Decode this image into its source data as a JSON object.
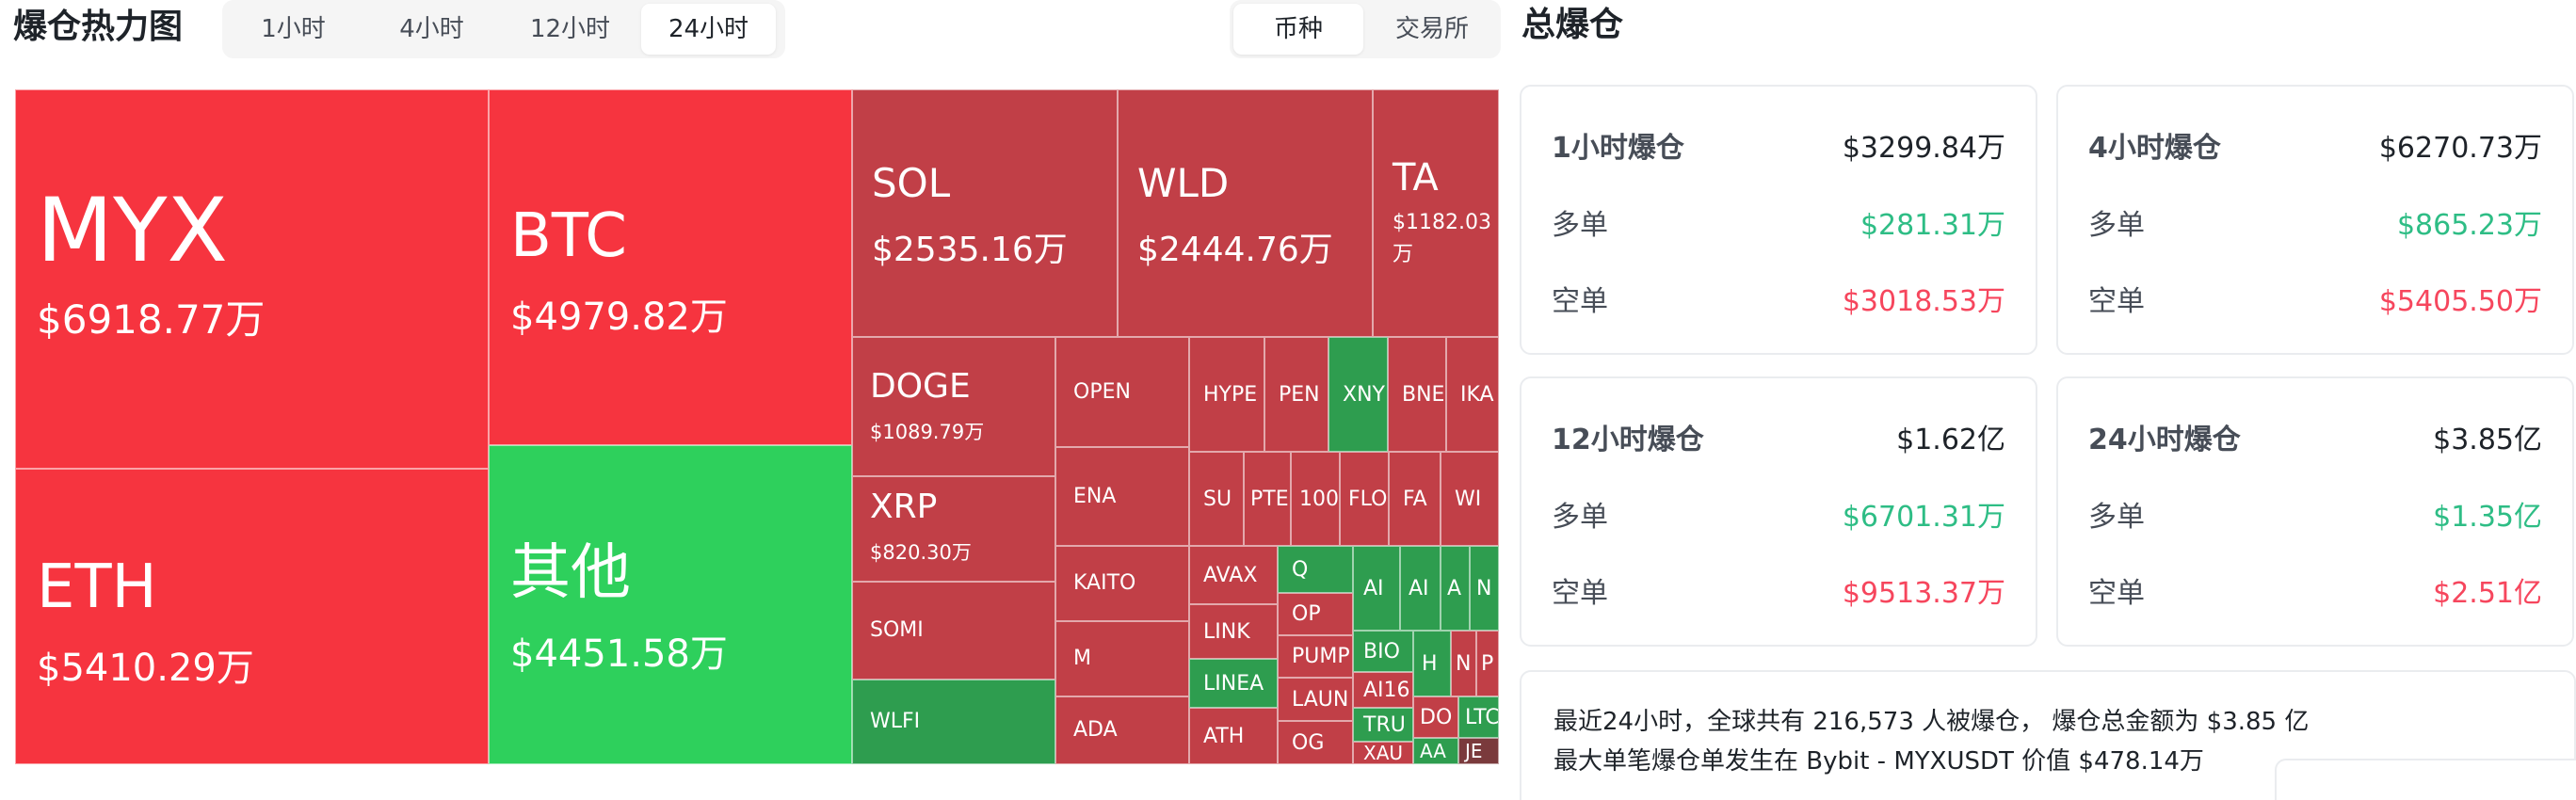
{
  "header": {
    "title": "爆仓热力图",
    "time_tabs": [
      "1小时",
      "4小时",
      "12小时",
      "24小时"
    ],
    "active_time_tab": "24小时",
    "mode_tabs": [
      "币种",
      "交易所"
    ],
    "active_mode_tab": "币种",
    "total_title": "总爆仓"
  },
  "colors": {
    "long": "#2ebd85",
    "short": "#f6465d",
    "heat_red": "#f6343f",
    "heat_dark_red": "#c13f47",
    "heat_green": "#2ed05c",
    "heat_dark_green": "#2e9d4f"
  },
  "treemap": {
    "myx": {
      "symbol": "MYX",
      "amount": "$6918.77万"
    },
    "eth": {
      "symbol": "ETH",
      "amount": "$5410.29万"
    },
    "btc": {
      "symbol": "BTC",
      "amount": "$4979.82万"
    },
    "other": {
      "symbol": "其他",
      "amount": "$4451.58万"
    },
    "sol": {
      "symbol": "SOL",
      "amount": "$2535.16万"
    },
    "wld": {
      "symbol": "WLD",
      "amount": "$2444.76万"
    },
    "ta": {
      "symbol": "TA",
      "amount": "$1182.03万"
    },
    "doge": {
      "symbol": "DOGE",
      "amount": "$1089.79万"
    },
    "xrp": {
      "symbol": "XRP",
      "amount": "$820.30万"
    },
    "small": {
      "somi": "SOMI",
      "wlfi": "WLFI",
      "open": "OPEN",
      "ena": "ENA",
      "kaito": "KAITO",
      "m": "M",
      "ada": "ADA",
      "hype": "HYPE",
      "pen": "PEN",
      "xny": "XNY",
      "bnb": "BNE",
      "ika": "IKA",
      "sui": "SU",
      "pte": "PTE",
      "n100": "100",
      "flo": "FLO",
      "fa": "FA",
      "wi": "WI",
      "avax": "AVAX",
      "q": "Q",
      "ai1": "AI",
      "ai2": "AI",
      "a3": "A",
      "n": "N",
      "op": "OP",
      "link": "LINK",
      "bio": "BIO",
      "h": "H",
      "n2": "N",
      "p": "P",
      "pump": "PUMP",
      "line": "LINEA",
      "ai16": "AI16",
      "laun": "LAUN",
      "tru": "TRU",
      "do": "DO",
      "lt": "LTC",
      "ath": "ATH",
      "og": "OG",
      "xau": "XAU",
      "aa": "AA",
      "je": "JE"
    }
  },
  "stats": [
    {
      "head_label": "1小时爆仓",
      "head_value": "$3299.84万",
      "long_label": "多单",
      "long_value": "$281.31万",
      "short_label": "空单",
      "short_value": "$3018.53万"
    },
    {
      "head_label": "4小时爆仓",
      "head_value": "$6270.73万",
      "long_label": "多单",
      "long_value": "$865.23万",
      "short_label": "空单",
      "short_value": "$5405.50万"
    },
    {
      "head_label": "12小时爆仓",
      "head_value": "$1.62亿",
      "long_label": "多单",
      "long_value": "$6701.31万",
      "short_label": "空单",
      "short_value": "$9513.37万"
    },
    {
      "head_label": "24小时爆仓",
      "head_value": "$3.85亿",
      "long_label": "多单",
      "long_value": "$1.35亿",
      "short_label": "空单",
      "short_value": "$2.51亿"
    }
  ],
  "summary": {
    "line1": "最近24小时，全球共有 216,573 人被爆仓， 爆仓总金额为 $3.85 亿",
    "line2": "最大单笔爆仓单发生在 Bybit - MYXUSDT 价值 $478.14万"
  }
}
